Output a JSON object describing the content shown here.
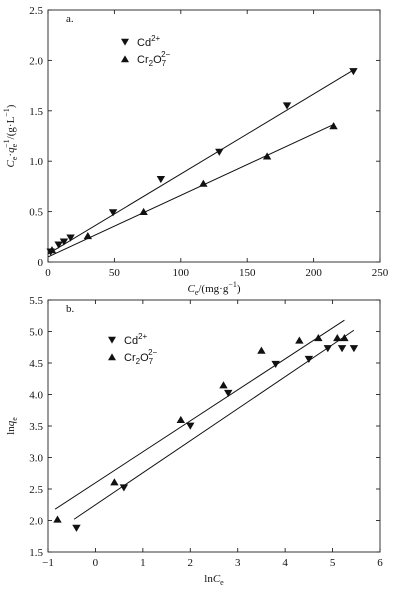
{
  "chart_data": [
    {
      "type": "scatter",
      "panel_label": "a.",
      "xlabel": "Ce/(mg·g−1)",
      "xlabel_parts": {
        "main": "C",
        "sub": "e",
        "rest": "/(mg·g",
        "sup": "−1",
        "end": ")"
      },
      "ylabel": "Ce·qe−1/(g·L−1)",
      "ylabel_parts": {
        "c": "C",
        "c_sub": "e",
        "dot": "·",
        "q": "q",
        "q_sub": "e",
        "sup1": "−1",
        "mid": "/(g·L",
        "sup2": "−1",
        "end": ")"
      },
      "xlim": [
        0,
        250
      ],
      "ylim": [
        0,
        2.5
      ],
      "xticks": [
        "0",
        "50",
        "100",
        "150",
        "200",
        "250"
      ],
      "yticks": [
        "0",
        "0.5",
        "1.0",
        "1.5",
        "2.0",
        "2.5"
      ],
      "legend_position": "top-left",
      "series": [
        {
          "name": "Cd2+",
          "name_parts": {
            "base": "Cd",
            "sup": "2+",
            "sub": ""
          },
          "marker": "triangle-down",
          "points": [
            [
              2,
              0.1
            ],
            [
              8,
              0.17
            ],
            [
              12,
              0.2
            ],
            [
              17,
              0.24
            ],
            [
              49,
              0.49
            ],
            [
              85,
              0.82
            ],
            [
              129,
              1.09
            ],
            [
              180,
              1.55
            ],
            [
              230,
              1.89
            ]
          ],
          "fit": [
            [
              0,
              0.08
            ],
            [
              232,
              1.92
            ]
          ]
        },
        {
          "name": "Cr2O72−",
          "name_parts": {
            "base": "Cr",
            "sub1": "2",
            "mid": "O",
            "sub2": "7",
            "sup": "2−"
          },
          "marker": "triangle-up",
          "points": [
            [
              3,
              0.12
            ],
            [
              30,
              0.26
            ],
            [
              72,
              0.5
            ],
            [
              117,
              0.78
            ],
            [
              165,
              1.05
            ],
            [
              215,
              1.35
            ]
          ],
          "fit": [
            [
              0,
              0.05
            ],
            [
              216,
              1.37
            ]
          ]
        }
      ]
    },
    {
      "type": "scatter",
      "panel_label": "b.",
      "xlabel": "lnCe",
      "xlabel_parts": {
        "pre": "ln",
        "main": "C",
        "sub": "e"
      },
      "ylabel": "lnqe",
      "ylabel_parts": {
        "pre": "ln",
        "main": "q",
        "sub": "e"
      },
      "xlim": [
        -1,
        6
      ],
      "ylim": [
        1.5,
        5.5
      ],
      "xticks": [
        "−1",
        "0",
        "1",
        "2",
        "3",
        "4",
        "5",
        "6"
      ],
      "yticks": [
        "1.5",
        "2.0",
        "2.5",
        "3.0",
        "3.5",
        "4.0",
        "4.5",
        "5.0",
        "5.5"
      ],
      "legend_position": "top-left",
      "series": [
        {
          "name": "Cd2+",
          "name_parts": {
            "base": "Cd",
            "sup": "2+",
            "sub": ""
          },
          "marker": "triangle-down",
          "points": [
            [
              -0.4,
              1.88
            ],
            [
              0.6,
              2.52
            ],
            [
              2.0,
              3.5
            ],
            [
              2.8,
              4.02
            ],
            [
              3.8,
              4.48
            ],
            [
              4.5,
              4.56
            ],
            [
              4.9,
              4.73
            ],
            [
              5.2,
              4.73
            ],
            [
              5.45,
              4.73
            ]
          ],
          "fit": [
            [
              -0.45,
              2.02
            ],
            [
              5.45,
              5.02
            ]
          ]
        },
        {
          "name": "Cr2O72−",
          "name_parts": {
            "base": "Cr",
            "sub1": "2",
            "mid": "O",
            "sub2": "7",
            "sup": "2−"
          },
          "marker": "triangle-up",
          "points": [
            [
              -0.8,
              2.02
            ],
            [
              0.4,
              2.61
            ],
            [
              1.8,
              3.6
            ],
            [
              2.7,
              4.15
            ],
            [
              3.5,
              4.7
            ],
            [
              4.3,
              4.86
            ],
            [
              4.7,
              4.9
            ],
            [
              5.1,
              4.9
            ],
            [
              5.25,
              4.9
            ]
          ],
          "fit": [
            [
              -0.85,
              2.18
            ],
            [
              5.25,
              5.18
            ]
          ]
        }
      ]
    }
  ]
}
